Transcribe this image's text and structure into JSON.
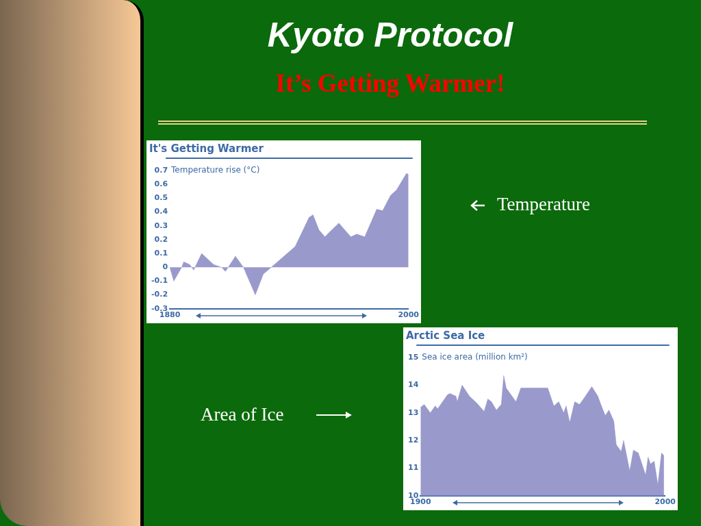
{
  "chart_data": [
    {
      "type": "other",
      "title": "Kyoto Protocol",
      "subtitle": "It’s Getting Warmer!",
      "annotations": [
        "Temperature",
        "Area of Ice"
      ]
    },
    {
      "type": "area",
      "title": "It's Getting Warmer",
      "ylabel": "Temperature rise (°C)",
      "xlim": [
        1880,
        2000
      ],
      "xticks": [
        1880,
        2000
      ],
      "ylim": [
        -0.3,
        0.7
      ],
      "yticks": [
        -0.3,
        -0.2,
        -0.1,
        0,
        0.1,
        0.2,
        0.3,
        0.4,
        0.5,
        0.6,
        0.7
      ],
      "x": [
        1880,
        1882,
        1886,
        1887,
        1890,
        1892,
        1896,
        1902,
        1906,
        1908,
        1913,
        1917,
        1923,
        1927,
        1931,
        1943,
        1950,
        1952,
        1955,
        1958,
        1960,
        1965,
        1968,
        1971,
        1974,
        1978,
        1984,
        1987,
        1991,
        1994,
        1999,
        2000
      ],
      "series": [
        {
          "color": "#9999cc",
          "values": [
            0,
            -0.1,
            0,
            0.04,
            0.02,
            -0.02,
            0.1,
            0.02,
            0,
            -0.03,
            0.08,
            0,
            -0.2,
            -0.05,
            0,
            0.15,
            0.36,
            0.38,
            0.27,
            0.22,
            0.25,
            0.32,
            0.27,
            0.22,
            0.24,
            0.22,
            0.42,
            0.41,
            0.52,
            0.56,
            0.68,
            0.67
          ]
        }
      ]
    },
    {
      "type": "area",
      "title": "Arctic Sea Ice",
      "ylabel": "Sea ice area (million km²)",
      "xlim": [
        1900,
        2000
      ],
      "xticks": [
        1900,
        2000
      ],
      "ylim": [
        10,
        15
      ],
      "yticks": [
        10,
        11,
        12,
        13,
        14,
        15
      ],
      "x": [
        1900,
        1901.5,
        1904,
        1906,
        1907,
        1911,
        1912,
        1914.5,
        1915,
        1917,
        1920,
        1923,
        1926,
        1927.5,
        1929,
        1931,
        1933,
        1934,
        1935,
        1939,
        1941,
        1952,
        1954.5,
        1956.5,
        1958.5,
        1959.5,
        1961,
        1963,
        1965,
        1967,
        1970,
        1972.5,
        1973.5,
        1975.5,
        1977,
        1979,
        1980,
        1982,
        1983,
        1985.5,
        1987,
        1989,
        1992,
        1993,
        1994,
        1995.5,
        1997,
        1998.5,
        1999.5
      ],
      "series": [
        {
          "color": "#9999cc",
          "values": [
            13.2,
            13.3,
            13.0,
            13.25,
            13.15,
            13.65,
            13.7,
            13.6,
            13.4,
            14.0,
            13.6,
            13.35,
            13.05,
            13.5,
            13.4,
            13.1,
            13.3,
            14.35,
            13.9,
            13.4,
            13.9,
            13.9,
            13.25,
            13.4,
            13.0,
            13.25,
            12.65,
            13.4,
            13.3,
            13.55,
            13.95,
            13.6,
            13.35,
            12.9,
            13.1,
            12.7,
            11.85,
            11.6,
            12.0,
            10.9,
            11.65,
            11.55,
            10.75,
            11.4,
            11.15,
            11.25,
            10.4,
            11.55,
            11.45
          ]
        }
      ]
    }
  ]
}
